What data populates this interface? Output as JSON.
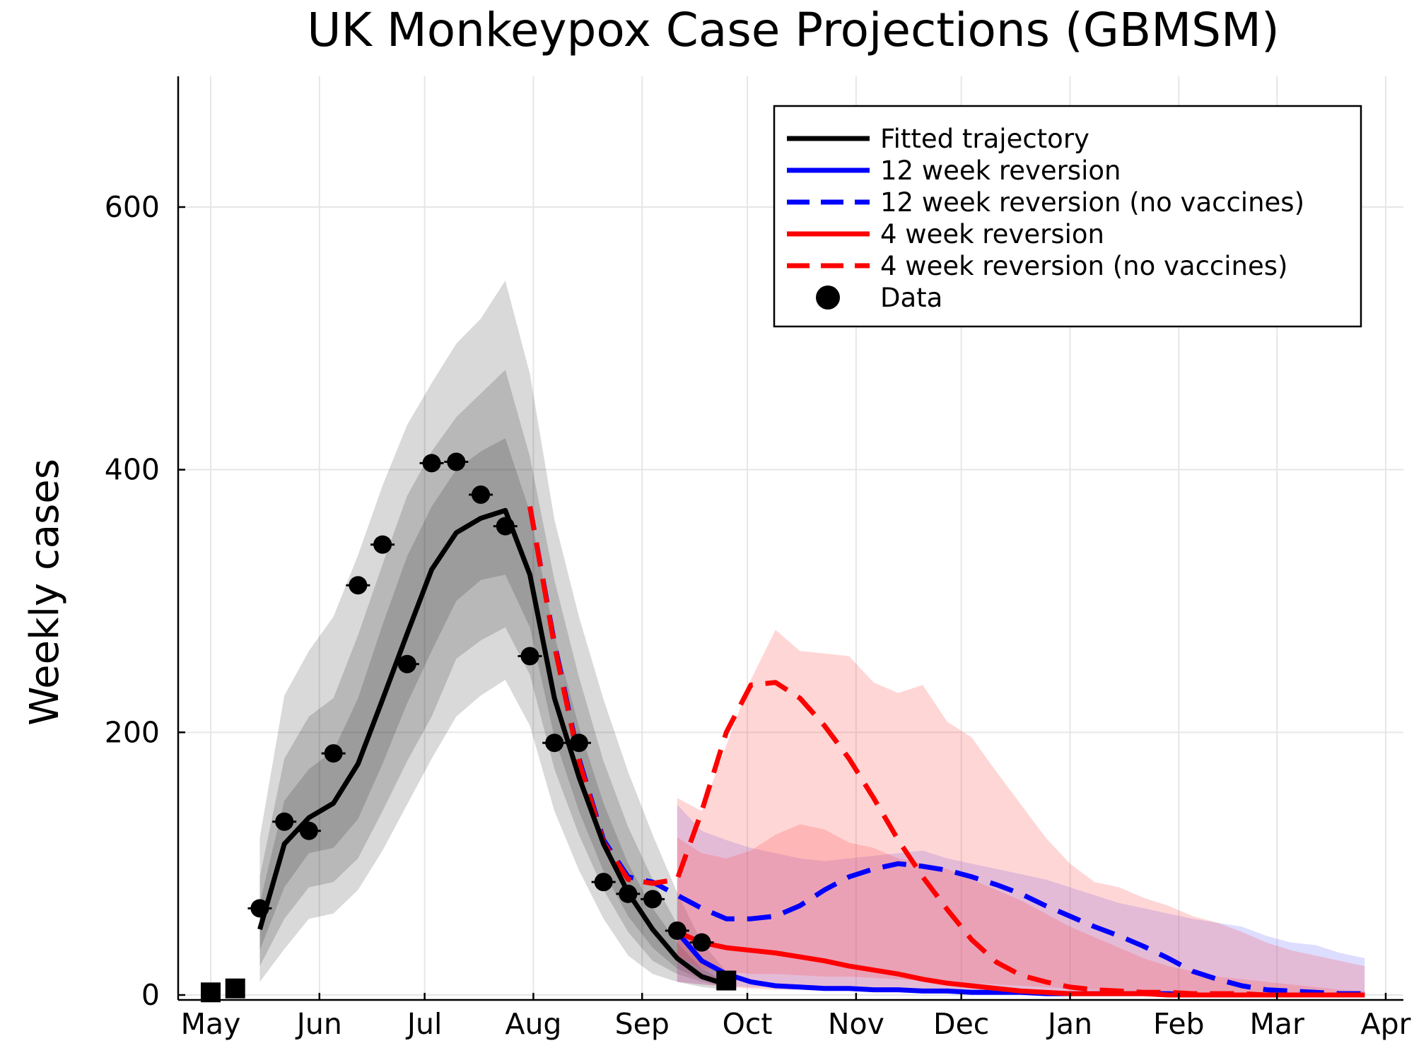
{
  "chart_data": {
    "type": "line",
    "title": "UK Monkeypox Case Projections (GBMSM)",
    "xlabel": "",
    "ylabel": "Weekly cases",
    "xlim": [
      "2022-05-01",
      "2023-04-01"
    ],
    "ylim": [
      0,
      700
    ],
    "x_ticks": [
      "May",
      "Jun",
      "Jul",
      "Aug",
      "Sep",
      "Oct",
      "Nov",
      "Dec",
      "Jan",
      "Feb",
      "Mar",
      "Apr"
    ],
    "x_tick_dates": [
      "2022-05-01",
      "2022-06-01",
      "2022-07-01",
      "2022-08-01",
      "2022-09-01",
      "2022-10-01",
      "2022-11-01",
      "2022-12-01",
      "2023-01-01",
      "2023-02-01",
      "2023-03-01",
      "2023-04-01"
    ],
    "y_ticks": [
      0,
      200,
      400,
      600
    ],
    "grid": true,
    "legend_position": "top-right",
    "legend": [
      {
        "label": "Fitted trajectory",
        "color": "#000000",
        "style": "solid"
      },
      {
        "label": "12 week reversion",
        "color": "#0000ff",
        "style": "solid"
      },
      {
        "label": "12 week reversion (no vaccines)",
        "color": "#0000ff",
        "style": "dashed"
      },
      {
        "label": "4 week reversion",
        "color": "#ff0000",
        "style": "solid"
      },
      {
        "label": "4 week reversion (no vaccines)",
        "color": "#ff0000",
        "style": "dashed"
      },
      {
        "label": "Data",
        "color": "#000000",
        "style": "marker"
      }
    ],
    "data_points": {
      "circles": [
        {
          "x": "2022-05-15",
          "y": 66
        },
        {
          "x": "2022-05-22",
          "y": 132
        },
        {
          "x": "2022-05-29",
          "y": 125
        },
        {
          "x": "2022-06-05",
          "y": 184
        },
        {
          "x": "2022-06-12",
          "y": 312
        },
        {
          "x": "2022-06-19",
          "y": 343
        },
        {
          "x": "2022-06-26",
          "y": 252
        },
        {
          "x": "2022-07-03",
          "y": 405
        },
        {
          "x": "2022-07-10",
          "y": 406
        },
        {
          "x": "2022-07-17",
          "y": 381
        },
        {
          "x": "2022-07-24",
          "y": 357
        },
        {
          "x": "2022-07-31",
          "y": 258
        },
        {
          "x": "2022-08-07",
          "y": 192
        },
        {
          "x": "2022-08-14",
          "y": 192
        },
        {
          "x": "2022-08-21",
          "y": 86
        },
        {
          "x": "2022-08-28",
          "y": 77
        },
        {
          "x": "2022-09-04",
          "y": 73
        },
        {
          "x": "2022-09-11",
          "y": 49
        },
        {
          "x": "2022-09-18",
          "y": 40
        }
      ],
      "squares": [
        {
          "x": "2022-05-01",
          "y": 2
        },
        {
          "x": "2022-05-08",
          "y": 5
        },
        {
          "x": "2022-09-25",
          "y": 11
        }
      ]
    },
    "fitted_trajectory": {
      "x": [
        "2022-05-15",
        "2022-05-22",
        "2022-05-29",
        "2022-06-05",
        "2022-06-12",
        "2022-06-19",
        "2022-06-26",
        "2022-07-03",
        "2022-07-10",
        "2022-07-17",
        "2022-07-24",
        "2022-07-31",
        "2022-08-07",
        "2022-08-14",
        "2022-08-21",
        "2022-08-28",
        "2022-09-04",
        "2022-09-11",
        "2022-09-18",
        "2022-09-25"
      ],
      "y": [
        50,
        115,
        135,
        146,
        176,
        225,
        275,
        324,
        352,
        363,
        369,
        320,
        226,
        166,
        115,
        78,
        50,
        28,
        14,
        8
      ],
      "bands": {
        "outer_upper": [
          120,
          228,
          262,
          288,
          335,
          388,
          434,
          466,
          496,
          515,
          544,
          473,
          362,
          288,
          225,
          170,
          122,
          78,
          40,
          18
        ],
        "outer_lower": [
          10,
          35,
          58,
          62,
          80,
          110,
          145,
          180,
          212,
          228,
          240,
          205,
          140,
          95,
          58,
          30,
          16,
          10,
          6,
          4
        ],
        "mid_upper": [
          90,
          180,
          212,
          226,
          274,
          328,
          380,
          414,
          440,
          458,
          476,
          410,
          316,
          242,
          178,
          128,
          88,
          54,
          28,
          14
        ],
        "mid_lower": [
          22,
          58,
          82,
          86,
          104,
          140,
          178,
          212,
          256,
          270,
          280,
          244,
          172,
          122,
          80,
          48,
          26,
          16,
          10,
          6
        ],
        "inner_upper": [
          70,
          148,
          172,
          186,
          226,
          282,
          334,
          372,
          400,
          414,
          424,
          368,
          274,
          204,
          146,
          100,
          66,
          40,
          20,
          10
        ],
        "inner_lower": [
          34,
          82,
          108,
          112,
          134,
          176,
          222,
          262,
          300,
          316,
          320,
          280,
          196,
          140,
          94,
          60,
          36,
          20,
          12,
          7
        ]
      }
    },
    "series": [
      {
        "name": "12 week reversion (no vaccines)",
        "x": [
          "2022-07-31",
          "2022-08-07",
          "2022-08-14",
          "2022-08-21",
          "2022-08-28",
          "2022-09-04",
          "2022-09-11",
          "2022-09-18",
          "2022-09-25",
          "2022-10-02",
          "2022-10-09",
          "2022-10-16",
          "2022-10-23",
          "2022-10-30",
          "2022-11-06",
          "2022-11-13",
          "2022-11-20",
          "2022-11-27",
          "2022-12-04",
          "2022-12-11",
          "2022-12-18",
          "2022-12-25",
          "2023-01-01",
          "2023-01-08",
          "2023-01-15",
          "2023-01-22",
          "2023-01-29",
          "2023-02-05",
          "2023-02-12",
          "2023-02-19",
          "2023-02-26",
          "2023-03-05",
          "2023-03-12",
          "2023-03-19",
          "2023-03-26"
        ],
        "y": [
          372,
          268,
          180,
          118,
          90,
          86,
          76,
          66,
          58,
          58,
          60,
          68,
          80,
          90,
          96,
          100,
          98,
          95,
          90,
          84,
          77,
          68,
          60,
          52,
          45,
          37,
          28,
          18,
          12,
          7,
          4,
          3,
          2,
          1,
          1
        ],
        "band_upper": [
          372,
          268,
          180,
          118,
          90,
          86,
          145,
          125,
          118,
          112,
          108,
          104,
          102,
          104,
          106,
          108,
          110,
          104,
          100,
          96,
          92,
          88,
          82,
          76,
          70,
          66,
          62,
          58,
          55,
          52,
          45,
          40,
          38,
          32,
          28
        ],
        "band_lower": [
          372,
          268,
          180,
          118,
          90,
          86,
          10,
          8,
          7,
          6,
          6,
          6,
          6,
          6,
          6,
          6,
          5,
          5,
          4,
          4,
          4,
          3,
          3,
          3,
          2,
          2,
          2,
          1,
          1,
          1,
          1,
          1,
          0,
          0,
          0
        ],
        "color": "#0000ff",
        "style": "dashed"
      },
      {
        "name": "12 week reversion",
        "x": [
          "2022-09-11",
          "2022-09-18",
          "2022-09-25",
          "2022-10-02",
          "2022-10-09",
          "2022-10-16",
          "2022-10-23",
          "2022-10-30",
          "2022-11-06",
          "2022-11-13",
          "2022-11-20",
          "2022-11-27",
          "2022-12-04",
          "2022-12-11",
          "2022-12-18",
          "2022-12-25",
          "2023-01-01",
          "2023-01-08",
          "2023-01-15",
          "2023-01-22",
          "2023-01-29",
          "2023-02-05",
          "2023-02-12",
          "2023-02-19",
          "2023-02-26",
          "2023-03-05",
          "2023-03-12",
          "2023-03-19",
          "2023-03-26"
        ],
        "y": [
          48,
          26,
          16,
          10,
          7,
          6,
          5,
          5,
          4,
          4,
          3,
          3,
          2,
          2,
          2,
          1,
          1,
          1,
          1,
          1,
          1,
          0,
          0,
          0,
          0,
          0,
          0,
          0,
          0
        ],
        "color": "#0000ff",
        "style": "solid"
      },
      {
        "name": "4 week reversion (no vaccines)",
        "x": [
          "2022-07-31",
          "2022-08-07",
          "2022-08-14",
          "2022-08-21",
          "2022-08-28",
          "2022-09-04",
          "2022-09-11",
          "2022-09-18",
          "2022-09-25",
          "2022-10-02",
          "2022-10-09",
          "2022-10-16",
          "2022-10-23",
          "2022-10-30",
          "2022-11-06",
          "2022-11-13",
          "2022-11-20",
          "2022-11-27",
          "2022-12-04",
          "2022-12-11",
          "2022-12-18",
          "2022-12-25",
          "2023-01-01",
          "2023-01-08",
          "2023-01-15",
          "2023-01-22",
          "2023-01-29",
          "2023-02-05",
          "2023-02-12",
          "2023-02-19",
          "2023-02-26",
          "2023-03-05",
          "2023-03-12",
          "2023-03-19",
          "2023-03-26"
        ],
        "y": [
          372,
          266,
          178,
          116,
          88,
          85,
          88,
          140,
          200,
          236,
          238,
          226,
          205,
          180,
          150,
          118,
          90,
          65,
          42,
          25,
          15,
          10,
          6,
          4,
          3,
          2,
          2,
          1,
          1,
          1,
          0,
          0,
          0,
          0,
          0
        ],
        "band_upper": [
          372,
          266,
          178,
          116,
          88,
          85,
          150,
          140,
          190,
          240,
          278,
          262,
          260,
          258,
          238,
          230,
          236,
          208,
          196,
          170,
          145,
          120,
          100,
          86,
          82,
          74,
          68,
          60,
          55,
          48,
          40,
          34,
          30,
          26,
          22
        ],
        "band_lower": [
          372,
          266,
          178,
          116,
          88,
          85,
          30,
          20,
          18,
          16,
          16,
          15,
          14,
          14,
          13,
          12,
          11,
          10,
          9,
          8,
          7,
          6,
          5,
          4,
          3,
          2,
          2,
          1,
          1,
          1,
          1,
          0,
          0,
          0,
          0
        ],
        "color": "#ff0000",
        "style": "dashed"
      },
      {
        "name": "4 week reversion",
        "x": [
          "2022-09-11",
          "2022-09-18",
          "2022-09-25",
          "2022-10-02",
          "2022-10-09",
          "2022-10-16",
          "2022-10-23",
          "2022-10-30",
          "2022-11-06",
          "2022-11-13",
          "2022-11-20",
          "2022-11-27",
          "2022-12-04",
          "2022-12-11",
          "2022-12-18",
          "2022-12-25",
          "2023-01-01",
          "2023-01-08",
          "2023-01-15",
          "2023-01-22",
          "2023-01-29",
          "2023-02-05",
          "2023-02-12",
          "2023-02-19",
          "2023-02-26",
          "2023-03-05",
          "2023-03-12",
          "2023-03-19",
          "2023-03-26"
        ],
        "y": [
          48,
          40,
          36,
          34,
          32,
          29,
          26,
          22,
          19,
          16,
          12,
          9,
          7,
          5,
          3,
          2,
          1,
          1,
          1,
          1,
          0,
          0,
          0,
          0,
          0,
          0,
          0,
          0,
          0
        ],
        "band_upper": [
          120,
          108,
          104,
          110,
          122,
          130,
          126,
          116,
          112,
          104,
          100,
          96,
          88,
          80,
          72,
          62,
          52,
          44,
          36,
          28,
          22,
          18,
          14,
          12,
          10,
          8,
          6,
          4,
          3
        ],
        "band_lower": [
          10,
          8,
          6,
          5,
          4,
          4,
          3,
          3,
          2,
          2,
          2,
          1,
          1,
          1,
          1,
          0,
          0,
          0,
          0,
          0,
          0,
          0,
          0,
          0,
          0,
          0,
          0,
          0,
          0
        ],
        "color": "#ff0000",
        "style": "solid"
      }
    ]
  }
}
